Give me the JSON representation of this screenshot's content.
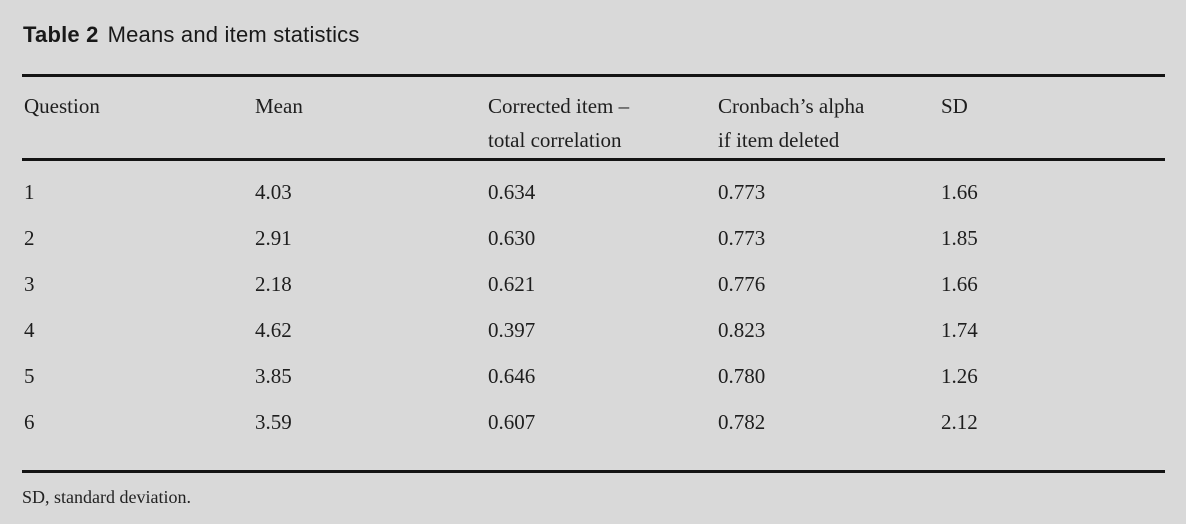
{
  "page": {
    "background_color": "#d9d9d9",
    "text_color": "#1e1e1e",
    "rule_color": "#141414"
  },
  "title": {
    "label": "Table 2",
    "text": "Means and item statistics"
  },
  "table": {
    "columns": [
      {
        "line1": "Question",
        "line2": ""
      },
      {
        "line1": "Mean",
        "line2": ""
      },
      {
        "line1": "Corrected item –",
        "line2": "total correlation"
      },
      {
        "line1": "Cronbach’s alpha",
        "line2": "if item deleted"
      },
      {
        "line1": "SD",
        "line2": ""
      }
    ],
    "rows": [
      {
        "question": "1",
        "mean": "4.03",
        "citc": "0.634",
        "alpha": "0.773",
        "sd": "1.66"
      },
      {
        "question": "2",
        "mean": "2.91",
        "citc": "0.630",
        "alpha": "0.773",
        "sd": "1.85"
      },
      {
        "question": "3",
        "mean": "2.18",
        "citc": "0.621",
        "alpha": "0.776",
        "sd": "1.66"
      },
      {
        "question": "4",
        "mean": "4.62",
        "citc": "0.397",
        "alpha": "0.823",
        "sd": "1.74"
      },
      {
        "question": "5",
        "mean": "3.85",
        "citc": "0.646",
        "alpha": "0.780",
        "sd": "1.26"
      },
      {
        "question": "6",
        "mean": "3.59",
        "citc": "0.607",
        "alpha": "0.782",
        "sd": "2.12"
      }
    ],
    "footnote": "SD, standard deviation."
  }
}
